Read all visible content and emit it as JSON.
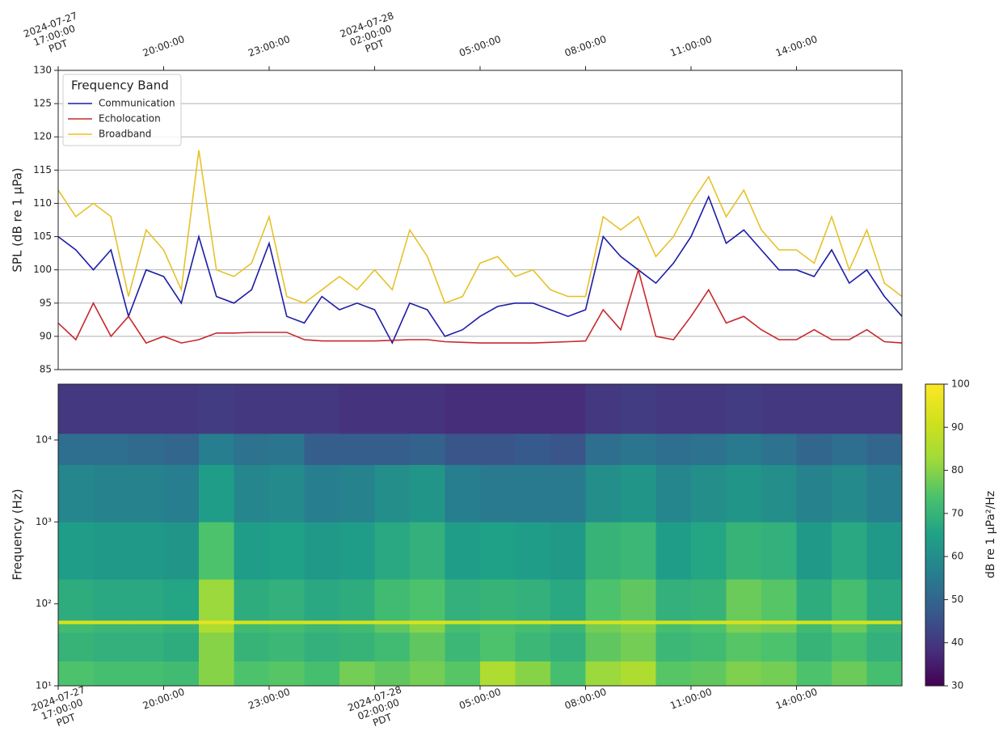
{
  "chart_data": [
    {
      "type": "line",
      "ylabel": "SPL (dB re 1 µPa)",
      "legend_title": "Frequency Band",
      "legend": "upper left",
      "grid": true,
      "xlim": [
        0,
        24
      ],
      "xticks": [
        {
          "value": 0,
          "label": "2024-07-27\n17:00:00\nPDT"
        },
        {
          "value": 3,
          "label": "20:00:00"
        },
        {
          "value": 6,
          "label": "23:00:00"
        },
        {
          "value": 9,
          "label": "2024-07-28\n02:00:00\nPDT"
        },
        {
          "value": 12,
          "label": "05:00:00"
        },
        {
          "value": 15,
          "label": "08:00:00"
        },
        {
          "value": 18,
          "label": "11:00:00"
        },
        {
          "value": 21,
          "label": "14:00:00"
        }
      ],
      "ylim": [
        85,
        130
      ],
      "yticks": [
        85,
        90,
        95,
        100,
        105,
        110,
        115,
        120,
        125,
        130
      ],
      "x": [
        0,
        0.5,
        1,
        1.5,
        2,
        2.5,
        3,
        3.5,
        4,
        4.5,
        5,
        5.5,
        6,
        6.5,
        7,
        7.5,
        8,
        8.5,
        9,
        9.5,
        10,
        10.5,
        11,
        11.5,
        12,
        12.5,
        13,
        13.5,
        14,
        14.5,
        15,
        15.5,
        16,
        16.5,
        17,
        17.5,
        18,
        18.5,
        19,
        19.5,
        20,
        20.5,
        21,
        21.5,
        22,
        22.5,
        23,
        23.5,
        24
      ],
      "series": [
        {
          "name": "Communication",
          "color": "#1c1ca6",
          "values": [
            105,
            103,
            100,
            103,
            93,
            100,
            99,
            95,
            105,
            96,
            95,
            97,
            104,
            93,
            92,
            96,
            94,
            95,
            94,
            89,
            95,
            94,
            90,
            91,
            93,
            94.5,
            95,
            95,
            94,
            93,
            94,
            105,
            102,
            100,
            98,
            101,
            105,
            111,
            104,
            106,
            103,
            100,
            100,
            99,
            103,
            98,
            100,
            96,
            93
          ]
        },
        {
          "name": "Echolocation",
          "color": "#c8282d",
          "values": [
            92,
            89.5,
            95,
            90,
            93,
            89,
            90,
            89,
            89.5,
            90.5,
            90.5,
            90.6,
            90.6,
            90.6,
            89.5,
            89.3,
            89.3,
            89.3,
            89.3,
            89.4,
            89.5,
            89.5,
            89.2,
            89.1,
            89,
            89,
            89,
            89,
            89.1,
            89.2,
            89.3,
            94,
            91,
            100,
            90,
            89.5,
            93,
            97,
            92,
            93,
            91,
            89.5,
            89.5,
            91,
            89.5,
            89.5,
            91,
            89.2,
            89
          ]
        },
        {
          "name": "Broadband",
          "color": "#e6c229",
          "values": [
            112,
            108,
            110,
            108,
            96,
            106,
            103,
            97,
            118,
            100,
            99,
            101,
            108,
            96,
            95,
            97,
            99,
            97,
            100,
            97,
            106,
            102,
            95,
            96,
            101,
            102,
            99,
            100,
            97,
            96,
            96,
            108,
            106,
            108,
            102,
            105,
            110,
            114,
            108,
            112,
            106,
            103,
            103,
            101,
            108,
            100,
            106,
            98,
            96
          ]
        }
      ]
    },
    {
      "type": "heatmap",
      "ylabel": "Frequency (Hz)",
      "log_y": true,
      "colormap": "viridis",
      "xlim": [
        0,
        24
      ],
      "xticks": [
        {
          "value": 0,
          "label": "2024-07-27\n17:00:00\nPDT"
        },
        {
          "value": 3,
          "label": "20:00:00"
        },
        {
          "value": 6,
          "label": "23:00:00"
        },
        {
          "value": 9,
          "label": "2024-07-28\n02:00:00\nPDT"
        },
        {
          "value": 12,
          "label": "05:00:00"
        },
        {
          "value": 15,
          "label": "08:00:00"
        },
        {
          "value": 18,
          "label": "11:00:00"
        },
        {
          "value": 21,
          "label": "14:00:00"
        }
      ],
      "ylim": [
        10,
        48000
      ],
      "yticks": [
        {
          "value": 10,
          "label": "10¹"
        },
        {
          "value": 100,
          "label": "10²"
        },
        {
          "value": 1000,
          "label": "10³"
        },
        {
          "value": 10000,
          "label": "10⁴"
        }
      ],
      "x_edges": [
        0,
        1,
        2,
        3,
        4,
        5,
        6,
        7,
        8,
        9,
        10,
        11,
        12,
        13,
        14,
        15,
        16,
        17,
        18,
        19,
        20,
        21,
        22,
        23,
        24
      ],
      "y_edges": [
        10,
        20,
        45,
        57,
        63,
        200,
        1000,
        5000,
        12000,
        48000
      ],
      "z": [
        [
          74,
          73,
          73,
          72,
          80,
          74,
          75,
          73,
          78,
          76,
          78,
          75,
          85,
          80,
          73,
          82,
          85,
          75,
          76,
          79,
          78,
          74,
          77,
          73
        ],
        [
          70,
          69,
          69,
          68,
          80,
          70,
          71,
          69,
          70,
          72,
          76,
          71,
          74,
          71,
          69,
          76,
          78,
          71,
          72,
          75,
          74,
          70,
          73,
          69
        ],
        [
          72,
          71,
          71,
          70,
          85,
          72,
          73,
          71,
          72,
          76,
          80,
          73,
          74,
          73,
          71,
          78,
          80,
          73,
          74,
          79,
          78,
          72,
          77,
          71
        ],
        [
          92,
          92,
          92,
          92,
          95,
          92,
          92,
          92,
          92,
          92,
          93,
          92,
          92,
          92,
          92,
          93,
          93,
          92,
          92,
          93,
          93,
          92,
          92,
          92
        ],
        [
          68,
          67,
          67,
          66,
          82,
          68,
          69,
          67,
          68,
          72,
          74,
          69,
          70,
          69,
          67,
          74,
          76,
          69,
          70,
          77,
          75,
          68,
          73,
          67
        ],
        [
          64,
          63,
          63,
          62,
          74,
          64,
          65,
          63,
          64,
          67,
          69,
          64,
          65,
          64,
          63,
          70,
          71,
          64,
          66,
          70,
          69,
          63,
          67,
          63
        ],
        [
          58,
          57,
          57,
          56,
          64,
          58,
          59,
          56,
          57,
          60,
          62,
          56,
          55,
          55,
          55,
          60,
          62,
          58,
          60,
          62,
          60,
          57,
          59,
          56
        ],
        [
          52,
          52,
          51,
          50,
          56,
          53,
          54,
          48,
          48,
          48,
          49,
          46,
          46,
          47,
          46,
          52,
          54,
          52,
          53,
          55,
          53,
          50,
          52,
          50
        ],
        [
          40,
          40,
          40,
          40,
          41,
          40,
          40,
          40,
          39,
          39,
          39,
          38,
          38,
          38,
          38,
          40,
          41,
          40,
          40,
          41,
          40,
          40,
          40,
          40
        ]
      ],
      "colorbar": {
        "label": "dB re 1 µPa²/Hz",
        "lim": [
          30,
          100
        ],
        "ticks": [
          30,
          40,
          50,
          60,
          70,
          80,
          90,
          100
        ]
      }
    }
  ]
}
